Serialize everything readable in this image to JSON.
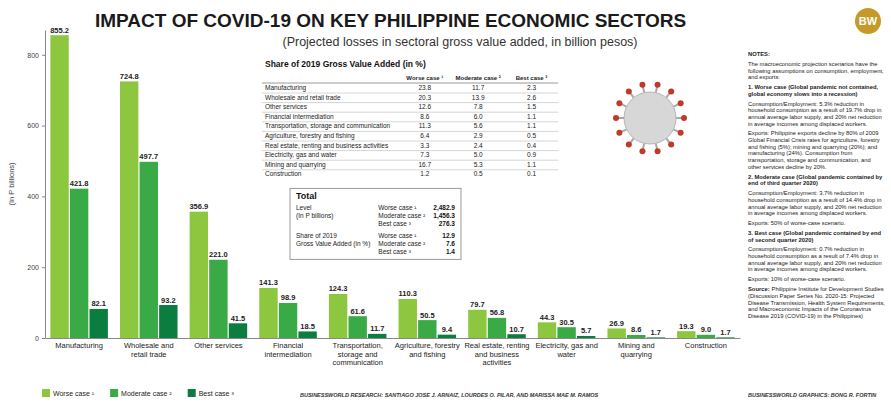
{
  "chart_data": {
    "type": "bar",
    "title": "IMPACT OF COVID-19 ON KEY PHILIPPINE ECONOMIC SECTORS",
    "subtitle": "(Projected losses in sectoral gross value added, in billion pesos)",
    "y_label": "(In P billions)",
    "categories": [
      "Manufacturing",
      "Wholesale and retail trade",
      "Other services",
      "Financial intermediation",
      "Transportation, storage and communication",
      "Agriculture, forestry and fishing",
      "Real estate, renting and business activities",
      "Electricity, gas and water",
      "Mining and quarrying",
      "Construction"
    ],
    "series": [
      {
        "name": "Worse case ¹",
        "color": "#8dc63f",
        "values": [
          855.2,
          724.8,
          356.9,
          141.3,
          124.3,
          110.3,
          79.7,
          44.3,
          26.9,
          19.3
        ],
        "value_labels": [
          "855.2",
          "724.8",
          "356.9",
          "141.3",
          "124.3",
          "110.3",
          "79.7",
          "44.3",
          "26.9",
          "19.3"
        ]
      },
      {
        "name": "Moderate case ²",
        "color": "#3aaa46",
        "values": [
          421.8,
          497.7,
          221.0,
          98.9,
          61.6,
          50.5,
          56.8,
          30.5,
          8.6,
          9.0
        ],
        "value_labels": [
          "421.8",
          "497.7",
          "221.0",
          "98.9",
          "61.6",
          "50.5",
          "56.8",
          "30.5",
          "8.6",
          "9.0"
        ]
      },
      {
        "name": "Best case ³",
        "color": "#0b7d3e",
        "values": [
          82.1,
          93.2,
          41.5,
          18.5,
          11.7,
          9.4,
          10.7,
          5.7,
          1.7,
          1.7
        ],
        "value_labels": [
          "82.1",
          "93.2",
          "41.5",
          "18.5",
          "11.7",
          "9.4",
          "10.7",
          "5.7",
          "1.7",
          "1.7"
        ]
      }
    ],
    "ylim": [
      0,
      870
    ],
    "yticks": [
      0,
      200,
      400,
      600,
      800
    ],
    "grid": false,
    "legend": "bottom-left",
    "data_labels": true
  },
  "logo": "BW",
  "table": {
    "title": "Share of 2019 Gross Value Added (in %)",
    "columns": [
      "Worse case ¹",
      "Moderate case ²",
      "Best case ³"
    ],
    "rows": [
      [
        "Manufacturing",
        "23.8",
        "11.7",
        "2.3"
      ],
      [
        "Wholesale and retail trade",
        "20.3",
        "13.9",
        "2.6"
      ],
      [
        "Other services",
        "12.6",
        "7.8",
        "1.5"
      ],
      [
        "Financial intermediation",
        "8.6",
        "6.0",
        "1.1"
      ],
      [
        "Transportation, storage and communication",
        "11.3",
        "5.6",
        "1.1"
      ],
      [
        "Agriculture, forestry and fishing",
        "6.4",
        "2.9",
        "0.5"
      ],
      [
        "Real estate, renting and business activities",
        "3.3",
        "2.4",
        "0.4"
      ],
      [
        "Electricity, gas and water",
        "7.3",
        "5.0",
        "0.9"
      ],
      [
        "Mining and quarrying",
        "16.7",
        "5.3",
        "1.1"
      ],
      [
        "Construction",
        "1.2",
        "0.5",
        "0.1"
      ]
    ]
  },
  "total": {
    "title": "Total",
    "rows": [
      {
        "label": "Level",
        "unit": "(In P billions)",
        "cases": [
          "Worse case ¹",
          "Moderate case ²",
          "Best case ³"
        ],
        "values": [
          "2,482.9",
          "1,456.3",
          "276.3"
        ]
      },
      {
        "label": "Share of 2019",
        "unit": "Gross Value Added (in %)",
        "cases": [
          "Worse case ¹",
          "Moderate case ²",
          "Best case ³"
        ],
        "values": [
          "12.9",
          "7.6",
          "1.4"
        ]
      }
    ]
  },
  "notes": {
    "heading": "NOTES:",
    "intro": "The macroeconomic projection scenarios have the following assumptions on consumption, employment, and exports:",
    "cases": [
      {
        "title": "1. Worse case (Global pandemic not contained, global economy slows into a recession)",
        "consumption": "Consumption/Employment: 5.3% reduction in household consumption as a result of 19.7% drop in annual average labor supply, and 20% net reduction in average incomes among displaced workers.",
        "exports": "Exports: Philippine exports decline by 80% of 2009 Global Financial Crisis rates for agriculture, forestry and fishing (5%); mining and quarrying (20%); and manufacturing (24%). Consumption from transportation, storage and communication, and other services decline by 20%."
      },
      {
        "title": "2. Moderate case (Global pandemic contained by end of third quarter 2020)",
        "consumption": "Consumption/Employment: 3.7% reduction in household consumption as a result of 14.4% drop in annual average labor supply, and 20% net reduction in average incomes among displaced workers.",
        "exports": "Exports: 50% of worse-case scenario."
      },
      {
        "title": "3. Best case (Global pandemic contained by end of second quarter 2020)",
        "consumption": "Consumption/Employment: 0.7% reduction in household consumption as a result of 7.4% drop in annual average labor supply, and 20% net reduction in average incomes among displaced workers.",
        "exports": "Exports: 10% of worse-case scenario."
      }
    ],
    "source_label": "Source:",
    "source": "Philippine Institute for Development Studies (Discussion Paper Series No. 2020-15: Projected Disease Transmission, Health System Requirements, and Macroeconomic Impacts of the Coronavirus Disease 2019 (COVID-19) in the Philippines)"
  },
  "credits": {
    "research": "BUSINESSWORLD RESEARCH: SANTIAGO JOSE J. ARNAIZ, LOURDES O. PILAR, AND MARISSA MAE M. RAMOS",
    "graphics": "BUSINESSWORLD GRAPHICS: BONG R. FORTIN"
  }
}
